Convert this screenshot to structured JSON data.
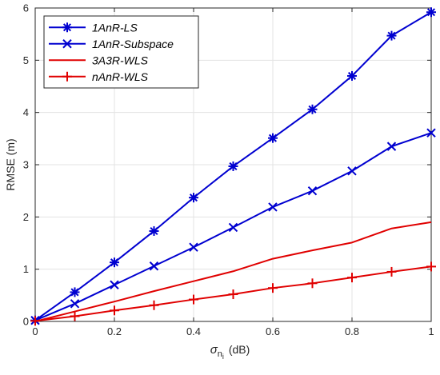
{
  "chart_data": {
    "type": "line",
    "title": "",
    "xlabel": "σ",
    "xlabel_sub": "n",
    "xlabel_subsub": "i",
    "xlabel_unit": "(dB)",
    "ylabel": "RMSE (m)",
    "xlim": [
      0,
      1
    ],
    "ylim": [
      0,
      6
    ],
    "xticks": [
      "0",
      "0.2",
      "0.4",
      "0.6",
      "0.8",
      "1"
    ],
    "yticks": [
      "0",
      "1",
      "2",
      "3",
      "4",
      "5",
      "6"
    ],
    "grid": true,
    "legend_position": "top-left",
    "x": [
      0,
      0.1,
      0.2,
      0.3,
      0.4,
      0.5,
      0.6,
      0.7,
      0.8,
      0.9,
      1.0
    ],
    "series": [
      {
        "name": "1AnR-LS",
        "color": "#0000d0",
        "marker": "asterisk",
        "values": [
          0.02,
          0.56,
          1.13,
          1.73,
          2.37,
          2.97,
          3.51,
          4.06,
          4.7,
          5.47,
          5.92
        ]
      },
      {
        "name": "1AnR-Subspace",
        "color": "#0000d0",
        "marker": "x",
        "values": [
          0.02,
          0.34,
          0.7,
          1.06,
          1.42,
          1.8,
          2.19,
          2.5,
          2.88,
          3.35,
          3.61
        ]
      },
      {
        "name": "3A3R-WLS",
        "color": "#e00000",
        "marker": "none",
        "values": [
          0.0,
          0.19,
          0.38,
          0.58,
          0.77,
          0.96,
          1.2,
          1.36,
          1.51,
          1.78,
          1.9
        ]
      },
      {
        "name": "nAnR-WLS",
        "color": "#e00000",
        "marker": "plus",
        "values": [
          0.01,
          0.1,
          0.21,
          0.31,
          0.42,
          0.52,
          0.64,
          0.73,
          0.84,
          0.95,
          1.05
        ]
      }
    ]
  }
}
